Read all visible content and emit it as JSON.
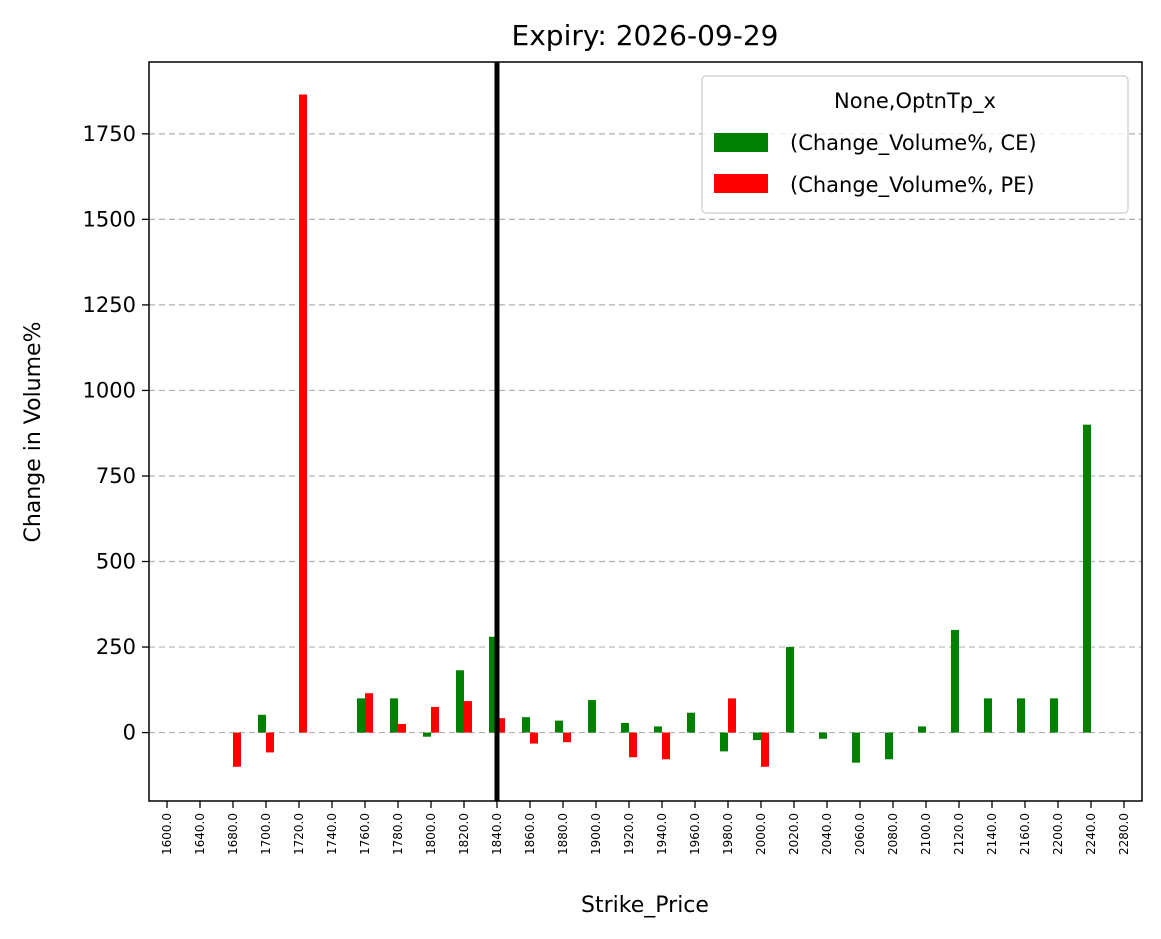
{
  "chart_data": {
    "type": "bar",
    "title": "Expiry: 2026-09-29",
    "xlabel": "Strike_Price",
    "ylabel": "Change in Volume%",
    "ylim": [
      -200,
      1960
    ],
    "yticks": [
      0,
      250,
      500,
      750,
      1000,
      1250,
      1500,
      1750
    ],
    "grid": "y-dashed",
    "legend_title": "None,OptnTp_x",
    "legend_position": "top-right",
    "categories": [
      "1600.0",
      "1640.0",
      "1680.0",
      "1700.0",
      "1720.0",
      "1740.0",
      "1760.0",
      "1780.0",
      "1800.0",
      "1820.0",
      "1840.0",
      "1860.0",
      "1880.0",
      "1900.0",
      "1920.0",
      "1940.0",
      "1960.0",
      "1980.0",
      "2000.0",
      "2020.0",
      "2040.0",
      "2060.0",
      "2080.0",
      "2100.0",
      "2120.0",
      "2140.0",
      "2160.0",
      "2200.0",
      "2240.0",
      "2280.0"
    ],
    "series": [
      {
        "name": "(Change_Volume%, CE)",
        "color": "#008000",
        "values": [
          null,
          null,
          null,
          52,
          null,
          null,
          100,
          100,
          -12,
          182,
          280,
          45,
          35,
          95,
          28,
          18,
          58,
          -55,
          -22,
          250,
          -18,
          -88,
          -78,
          18,
          300,
          100,
          100,
          100,
          900,
          null
        ]
      },
      {
        "name": "(Change_Volume%, PE)",
        "color": "#ff0000",
        "values": [
          null,
          null,
          -100,
          -58,
          1865,
          null,
          115,
          25,
          75,
          92,
          42,
          -32,
          -28,
          null,
          -72,
          -78,
          null,
          100,
          -100,
          null,
          null,
          null,
          null,
          null,
          null,
          null,
          null,
          null,
          null,
          null
        ]
      }
    ],
    "vline": {
      "category": "1840.0",
      "color": "#000000"
    }
  }
}
